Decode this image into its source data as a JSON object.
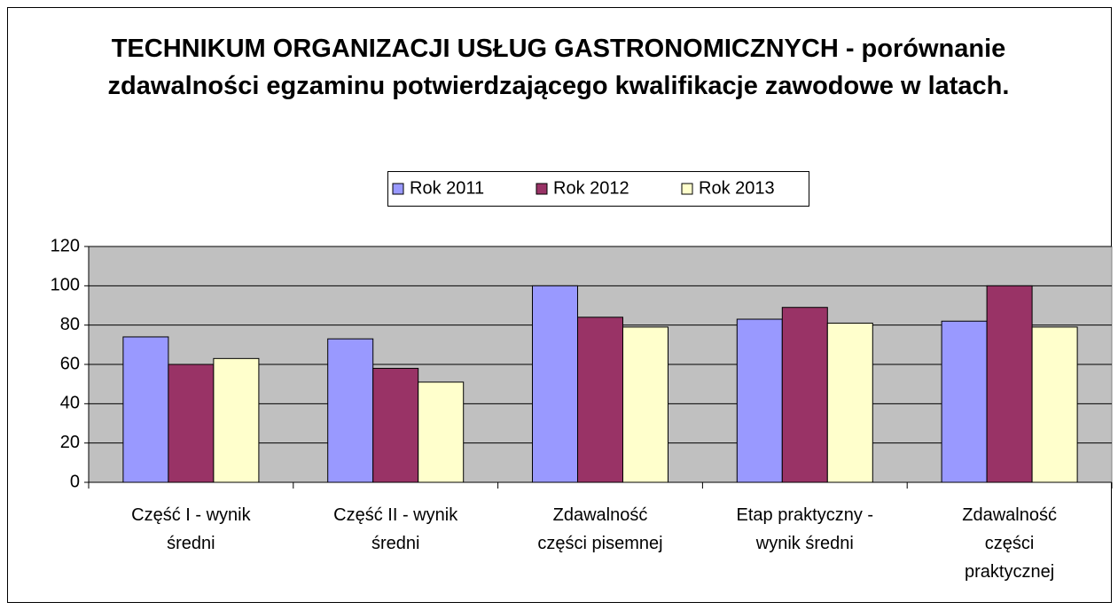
{
  "chart_data": {
    "type": "bar",
    "title": "TECHNIKUM ORGANIZACJI USŁUG GASTRONOMICZNYCH - porównanie zdawalności egzaminu potwierdzającego kwalifikacje zawodowe w latach.",
    "categories": [
      "Część I - wynik średni",
      "Część II - wynik średni",
      "Zdawalność części pisemnej",
      "Etap praktyczny - wynik średni",
      "Zdawalność części praktycznej"
    ],
    "series": [
      {
        "name": "Rok 2011",
        "color": "#9999ff",
        "values": [
          74,
          73,
          100,
          83,
          82
        ]
      },
      {
        "name": "Rok 2012",
        "color": "#993366",
        "values": [
          60,
          58,
          84,
          89,
          100
        ]
      },
      {
        "name": "Rok 2013",
        "color": "#ffffcc",
        "values": [
          63,
          51,
          79,
          81,
          79
        ]
      }
    ],
    "ylim": [
      0,
      120
    ],
    "yticks": [
      0,
      20,
      40,
      60,
      80,
      100,
      120
    ],
    "grid": true,
    "legend": "top"
  }
}
